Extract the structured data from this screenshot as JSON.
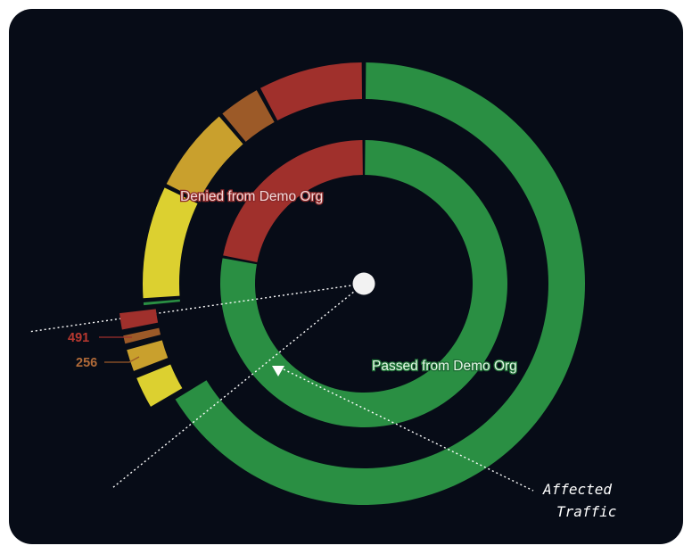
{
  "chart_data": {
    "type": "pie",
    "inner_ring": [
      {
        "label": "Passed from Demo Org",
        "value": 78,
        "color": "#2a8f43"
      },
      {
        "label": "Denied from Demo Org",
        "value": 22,
        "color": "#a0302c"
      }
    ],
    "outer_ring": [
      {
        "value": 66.4,
        "color": "#2a8f43"
      },
      {
        "value": 2.6,
        "color": "#dcd030"
      },
      {
        "value": 1.9,
        "color": "#c9a02d"
      },
      {
        "value": 0.9,
        "color": "#9c5a28"
      },
      {
        "value": 1.5,
        "color": "#a0302c"
      },
      {
        "value": 0.5,
        "color": "#2a8f43"
      },
      {
        "value": 8.5,
        "color": "#dcd030"
      },
      {
        "value": 6.5,
        "color": "#c9a02d"
      },
      {
        "value": 3.3,
        "color": "#9c5a28"
      },
      {
        "value": 7.9,
        "color": "#a0302c"
      }
    ],
    "callouts": [
      {
        "value": "491",
        "color": "#a0302c"
      },
      {
        "value": "256",
        "color": "#9c5a28"
      }
    ],
    "annotation": {
      "line1": "Affected",
      "line2": "Traffic"
    }
  }
}
